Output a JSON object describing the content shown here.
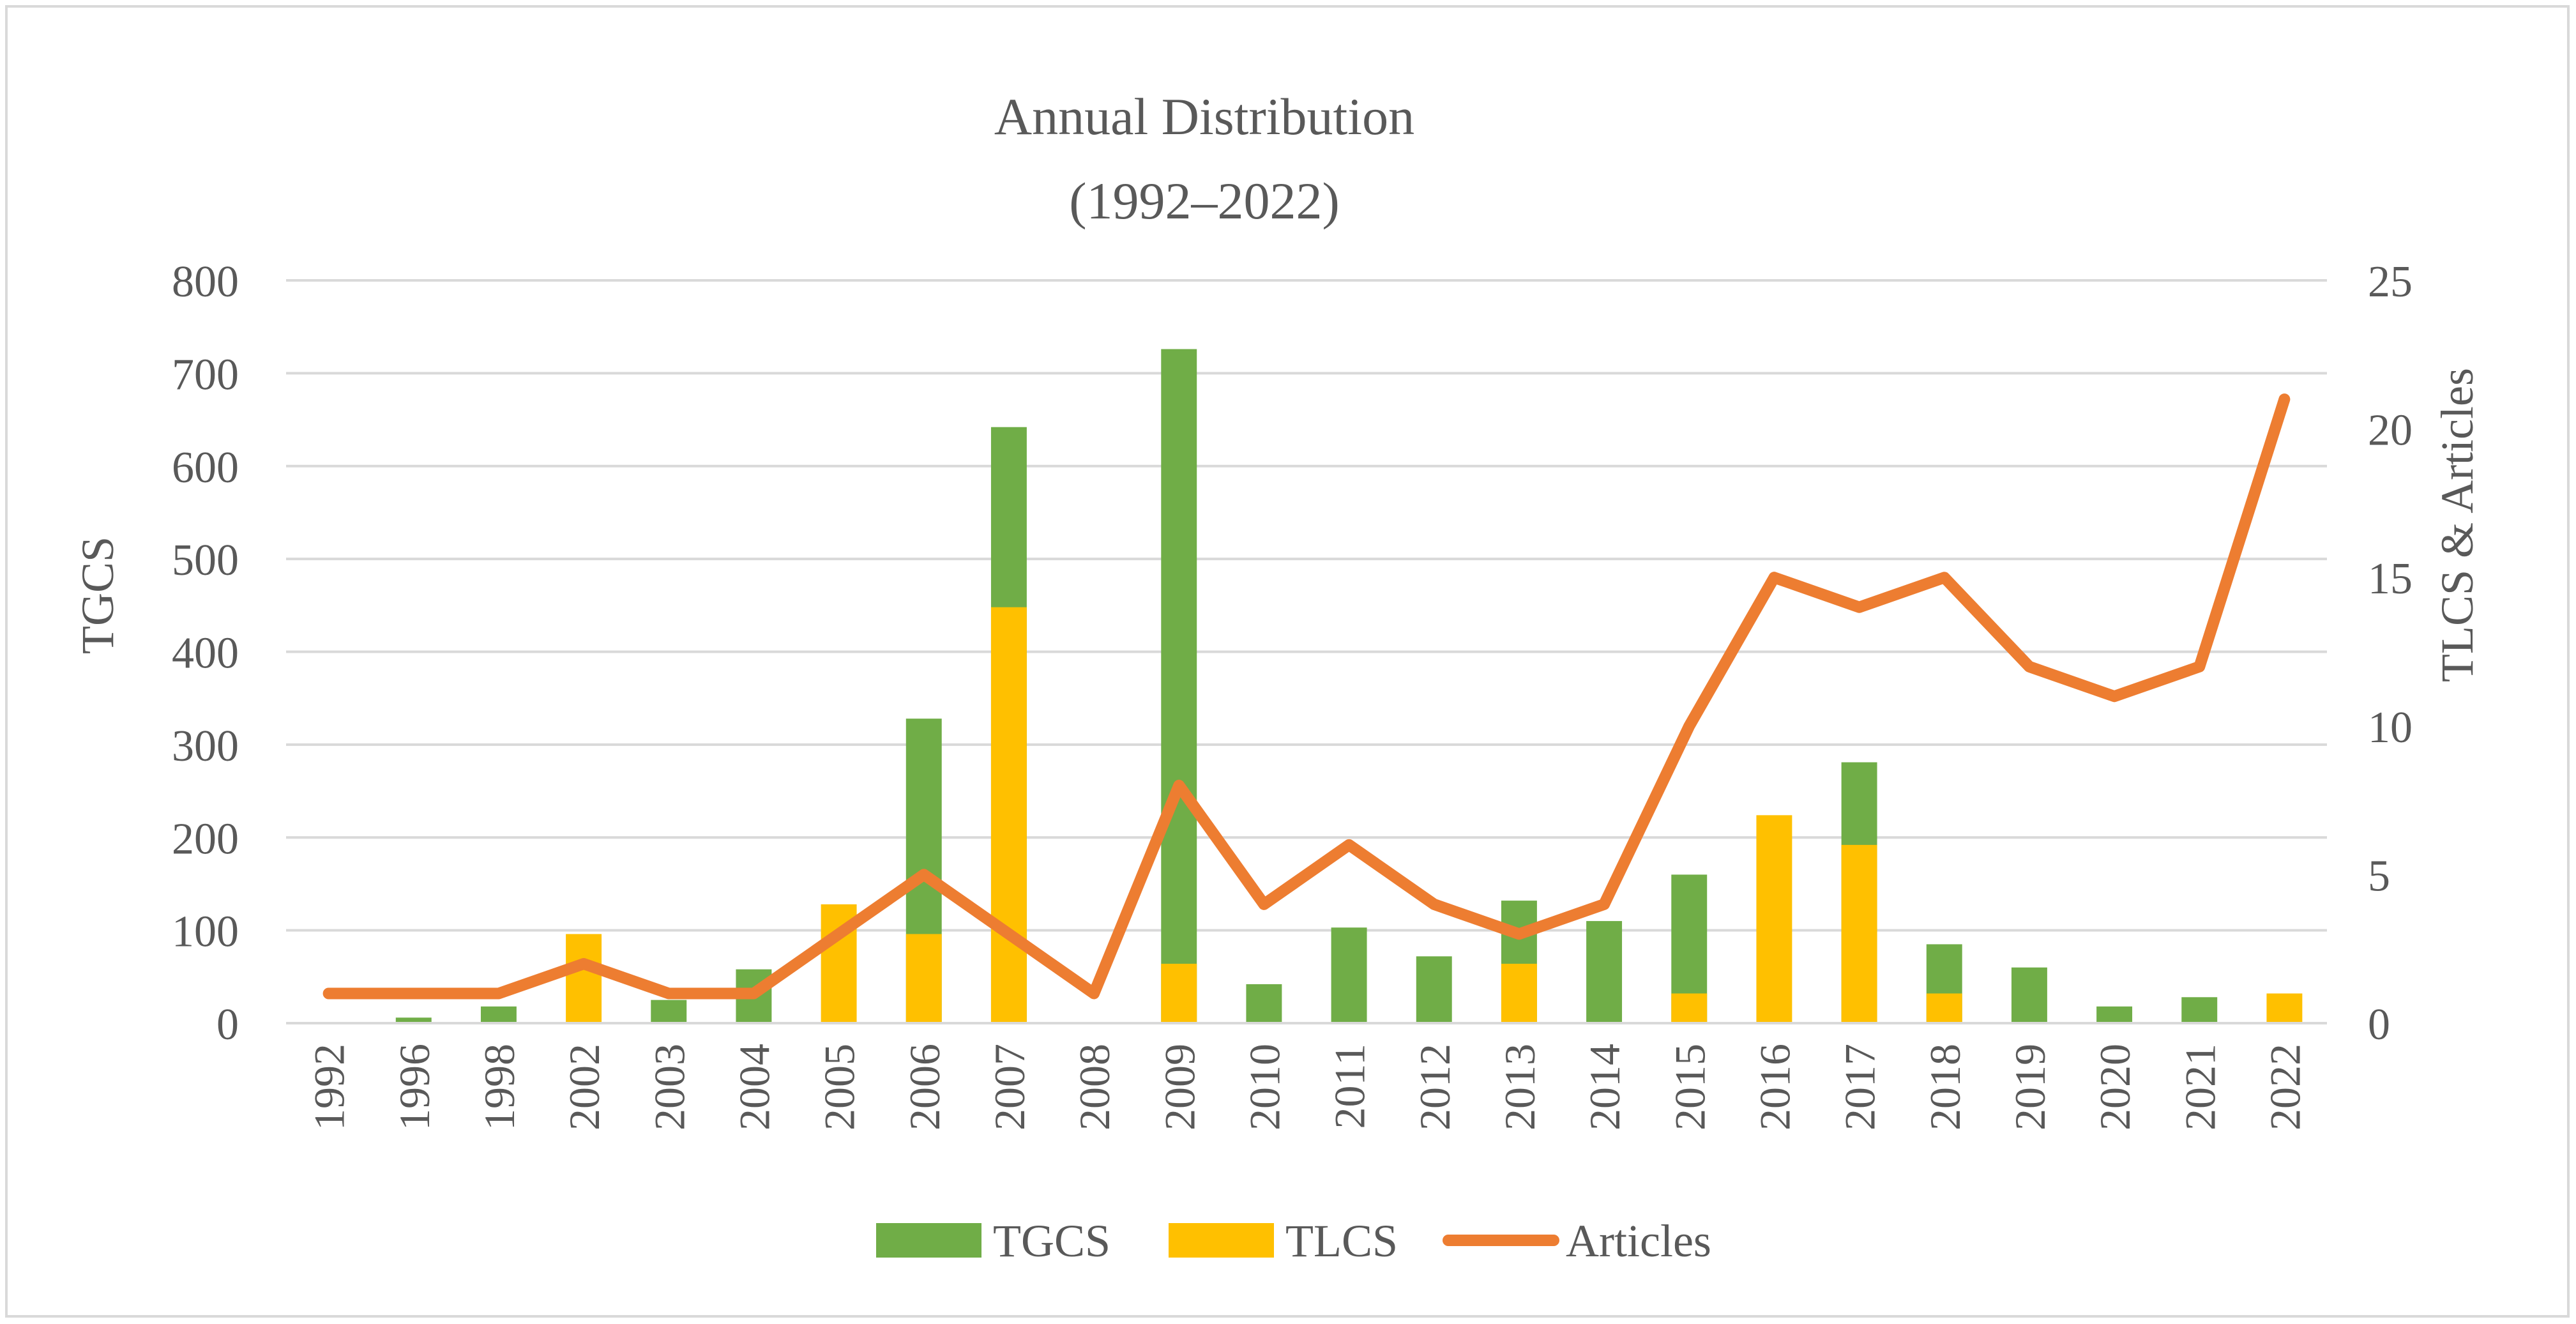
{
  "chart_data": {
    "type": "bar",
    "title": "Annual Distribution",
    "subtitle": "(1992–2022)",
    "ylabel_left": "TGCS",
    "ylabel_right": "TLCS & Articles",
    "ylim_left": [
      0,
      800
    ],
    "ylim_right": [
      0,
      25
    ],
    "yticks_left": [
      "0",
      "100",
      "200",
      "300",
      "400",
      "500",
      "600",
      "700",
      "800"
    ],
    "yticks_right": [
      "0",
      "5",
      "10",
      "15",
      "20",
      "25"
    ],
    "grid": true,
    "legend_position": "bottom",
    "categories": [
      "1992",
      "1996",
      "1998",
      "2002",
      "2003",
      "2004",
      "2005",
      "2006",
      "2007",
      "2008",
      "2009",
      "2010",
      "2011",
      "2012",
      "2013",
      "2014",
      "2015",
      "2016",
      "2017",
      "2018",
      "2019",
      "2020",
      "2021",
      "2022"
    ],
    "series": [
      {
        "name": "TGCS",
        "axis": "left",
        "type": "bar",
        "color": "#70ad47",
        "values": [
          0,
          6,
          18,
          0,
          25,
          58,
          0,
          328,
          642,
          0,
          726,
          42,
          103,
          72,
          132,
          110,
          160,
          0,
          281,
          85,
          60,
          18,
          28,
          0
        ]
      },
      {
        "name": "TLCS",
        "axis": "left-overlay",
        "type": "bar",
        "color": "#ffc000",
        "values": [
          0,
          0,
          0,
          96,
          0,
          0,
          128,
          96,
          448,
          0,
          64,
          0,
          0,
          0,
          64,
          0,
          32,
          224,
          192,
          32,
          0,
          0,
          0,
          32
        ]
      },
      {
        "name": "Articles",
        "axis": "right",
        "type": "line",
        "color": "#ed7d31",
        "values": [
          1,
          1,
          1,
          2,
          1,
          1,
          3,
          5,
          3,
          1,
          8,
          4,
          6,
          4,
          3,
          4,
          10,
          15,
          14,
          15,
          12,
          11,
          12,
          21
        ]
      }
    ]
  }
}
